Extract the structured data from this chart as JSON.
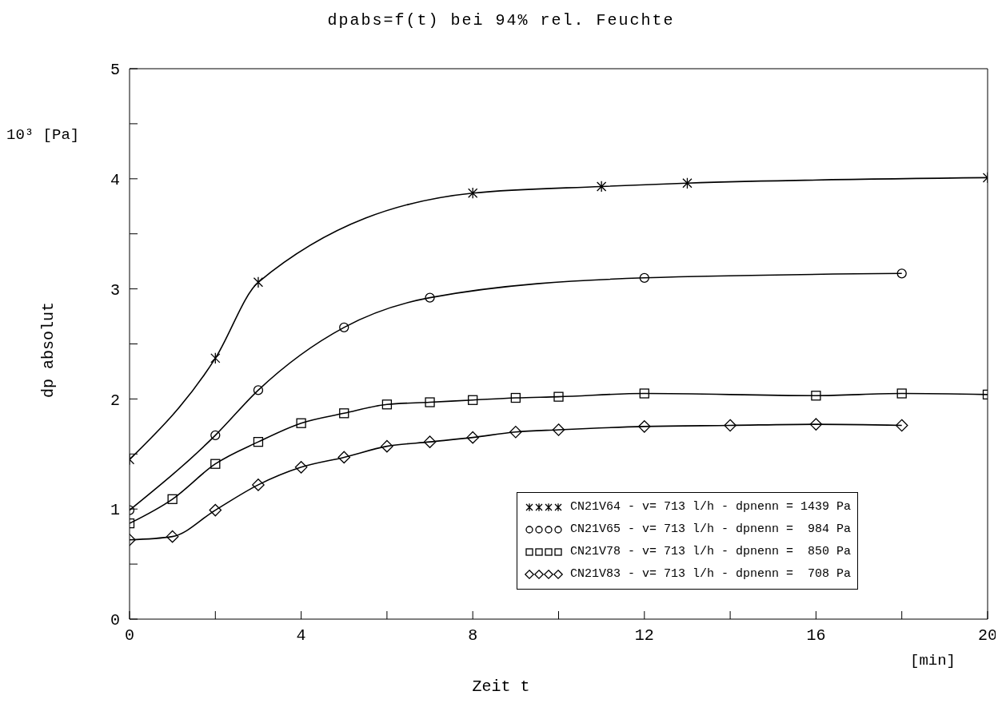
{
  "chart_data": {
    "type": "line",
    "title": "dpabs=f(t) bei 94% rel. Feuchte",
    "xlabel": "Zeit t",
    "ylabel": "dp absolut",
    "annotations": [
      "10³ [Pa]",
      "[min]"
    ],
    "xlim": [
      0,
      20
    ],
    "xticks": [
      0,
      {
        "value": 2,
        "label": null
      },
      4,
      {
        "value": 6,
        "label": null
      },
      8,
      {
        "value": 10,
        "label": null
      },
      12,
      {
        "value": 14,
        "label": null
      },
      16,
      {
        "value": 18,
        "label": null
      },
      20
    ],
    "ylim": [
      0,
      5
    ],
    "yticks": [
      0,
      {
        "value": 0.5,
        "label": null
      },
      1,
      {
        "value": 1.5,
        "label": null
      },
      2,
      {
        "value": 2.5,
        "label": null
      },
      3,
      {
        "value": 3.5,
        "label": null
      },
      4,
      {
        "value": 4.5,
        "label": null
      },
      5
    ],
    "grid": false,
    "legend": "bottom right",
    "line_style": "solid",
    "series": [
      {
        "name": "CN21V64 - v= 713 l/h - dpnenn = 1439 Pa",
        "color": "#000000",
        "marker": "cross",
        "x": [
          0,
          2,
          3,
          8,
          11,
          13,
          20
        ],
        "values": [
          1.45,
          2.37,
          3.06,
          3.87,
          3.93,
          3.96,
          4.01
        ]
      },
      {
        "name": "CN21V65 - v= 713 l/h - dpnenn =  984 Pa",
        "color": "#000000",
        "marker": "circle",
        "x": [
          0,
          2,
          3,
          5,
          7,
          12,
          18
        ],
        "values": [
          0.99,
          1.67,
          2.08,
          2.65,
          2.92,
          3.1,
          3.14
        ]
      },
      {
        "name": "CN21V78 - v= 713 l/h - dpnenn =  850 Pa",
        "color": "#000000",
        "marker": "square",
        "x": [
          0,
          1,
          2,
          3,
          4,
          5,
          6,
          7,
          8,
          9,
          10,
          12,
          16,
          18,
          20
        ],
        "values": [
          0.87,
          1.09,
          1.41,
          1.61,
          1.78,
          1.87,
          1.95,
          1.97,
          1.99,
          2.01,
          2.02,
          2.05,
          2.03,
          2.05,
          2.04
        ]
      },
      {
        "name": "CN21V83 - v= 713 l/h - dpnenn =  708 Pa",
        "color": "#000000",
        "marker": "diamond",
        "x": [
          0,
          1,
          2,
          3,
          4,
          5,
          6,
          7,
          8,
          9,
          10,
          12,
          14,
          16,
          18
        ],
        "values": [
          0.72,
          0.75,
          0.99,
          1.22,
          1.38,
          1.47,
          1.57,
          1.61,
          1.65,
          1.7,
          1.72,
          1.75,
          1.76,
          1.77,
          1.76
        ]
      }
    ]
  }
}
